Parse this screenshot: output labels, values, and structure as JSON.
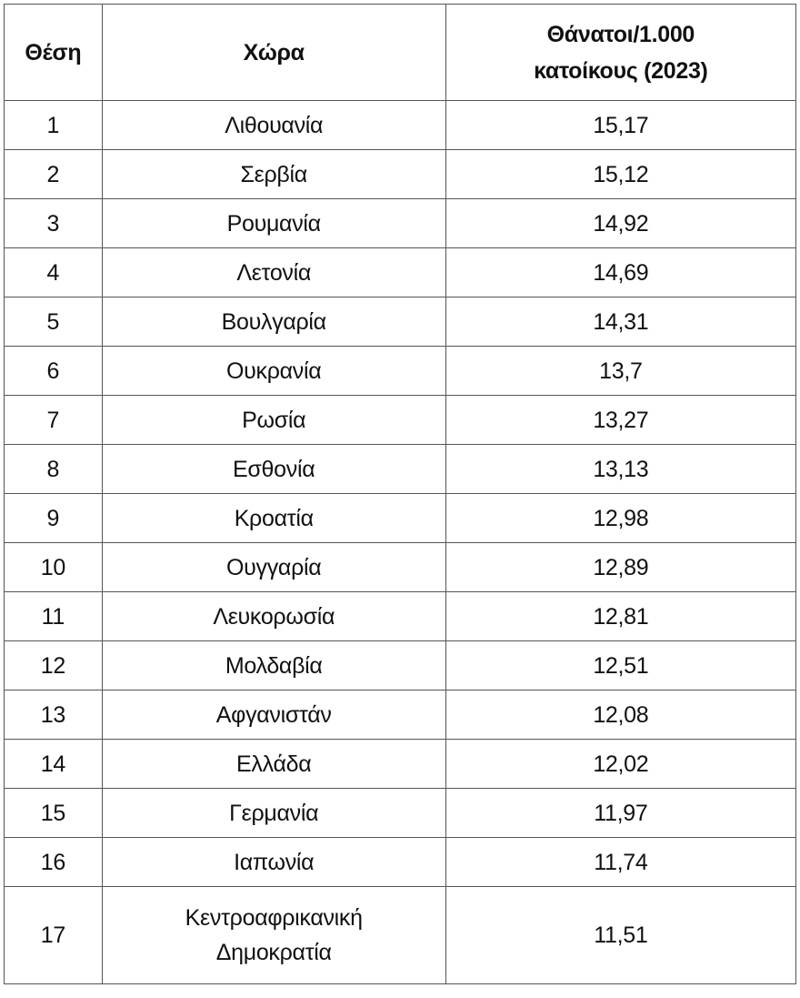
{
  "table": {
    "headers": [
      "Θέση",
      "Χώρα",
      "Θάνατοι/1.000 κατοίκους (2023)"
    ],
    "rows": [
      {
        "rank": "1",
        "country": "Λιθουανία",
        "value": "15,17"
      },
      {
        "rank": "2",
        "country": "Σερβία",
        "value": "15,12"
      },
      {
        "rank": "3",
        "country": "Ρουμανία",
        "value": "14,92"
      },
      {
        "rank": "4",
        "country": "Λετονία",
        "value": "14,69"
      },
      {
        "rank": "5",
        "country": "Βουλγαρία",
        "value": "14,31"
      },
      {
        "rank": "6",
        "country": "Ουκρανία",
        "value": "13,7"
      },
      {
        "rank": "7",
        "country": "Ρωσία",
        "value": "13,27"
      },
      {
        "rank": "8",
        "country": "Εσθονία",
        "value": "13,13"
      },
      {
        "rank": "9",
        "country": "Κροατία",
        "value": "12,98"
      },
      {
        "rank": "10",
        "country": "Ουγγαρία",
        "value": "12,89"
      },
      {
        "rank": "11",
        "country": "Λευκορωσία",
        "value": "12,81"
      },
      {
        "rank": "12",
        "country": "Μολδαβία",
        "value": "12,51"
      },
      {
        "rank": "13",
        "country": "Αφγανιστάν",
        "value": "12,08"
      },
      {
        "rank": "14",
        "country": "Ελλάδα",
        "value": "12,02"
      },
      {
        "rank": "15",
        "country": "Γερμανία",
        "value": "11,97"
      },
      {
        "rank": "16",
        "country": "Ιαπωνία",
        "value": "11,74"
      },
      {
        "rank": "17",
        "country": "Κεντροαφρικανική Δημοκρατία",
        "value": "11,51"
      }
    ]
  }
}
